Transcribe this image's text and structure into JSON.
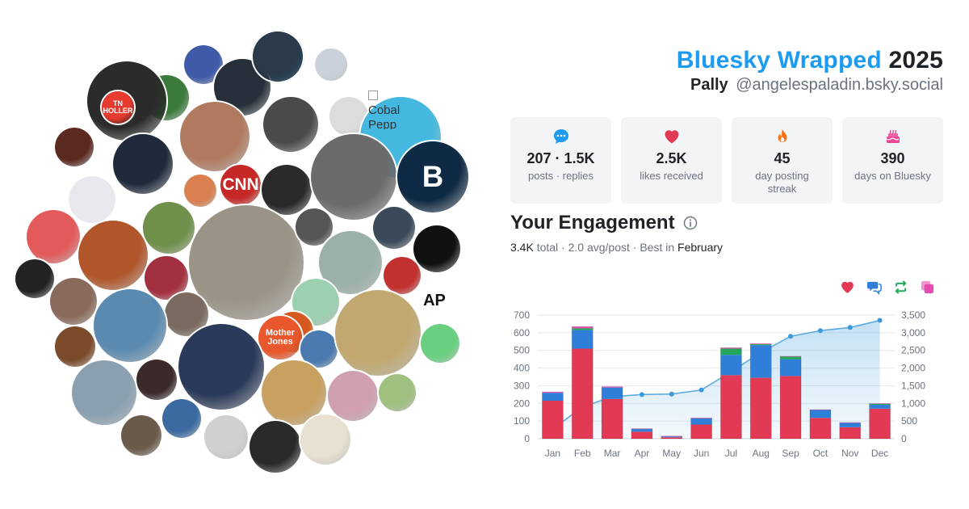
{
  "header": {
    "brand": "Bluesky Wrapped",
    "year": "2025",
    "display_name": "Pally",
    "handle": "@angelespaladin.bsky.social"
  },
  "stats": [
    {
      "icon": "chat-bubble-icon",
      "value": "207 · 1.5K",
      "label": "posts · replies",
      "color": "#1d9bf0"
    },
    {
      "icon": "heart-icon",
      "value": "2.5K",
      "label": "likes received",
      "color": "#e23a55"
    },
    {
      "icon": "flame-icon",
      "value": "45",
      "label": "day posting streak",
      "color": "#f97316"
    },
    {
      "icon": "cake-icon",
      "value": "390",
      "label": "days on Bluesky",
      "color": "#ec4899"
    }
  ],
  "engagement": {
    "title": "Your Engagement",
    "total": "3.4K",
    "total_suffix": "total · 2.0 avg/post · Best in",
    "best_month": "February"
  },
  "legend": [
    {
      "icon": "heart-icon",
      "color": "#e23a55"
    },
    {
      "icon": "reply-icon",
      "color": "#2f7fd8"
    },
    {
      "icon": "repost-icon",
      "color": "#22a65a"
    },
    {
      "icon": "quote-icon",
      "color": "#e64bb0"
    }
  ],
  "avatar_cloud": {
    "broken_alt": "Cobal Pepp",
    "avatars": [
      {
        "d": 66,
        "c": "#1f5f8b",
        "t": ""
      },
      {
        "d": 48,
        "c": "#3f5ba8",
        "t": ""
      },
      {
        "d": 70,
        "c": "#27303a",
        "t": ""
      },
      {
        "d": 40,
        "c": "#c9d2da",
        "t": ""
      },
      {
        "d": 56,
        "c": "#3a7a3a",
        "t": ""
      },
      {
        "d": 68,
        "c": "#4a4a4a",
        "t": ""
      },
      {
        "d": 86,
        "c": "#b07a60",
        "t": ""
      },
      {
        "d": 98,
        "c": "#2b2b2b",
        "t": ""
      },
      {
        "d": 48,
        "c": "#5a2a20",
        "t": ""
      },
      {
        "d": 48,
        "c": "#dcdcdc",
        "t": ""
      },
      {
        "d": 74,
        "c": "#1f2a3a",
        "t": ""
      },
      {
        "d": 100,
        "c": "#45b8e0",
        "t": ""
      },
      {
        "d": 40,
        "c": "#e63b2e",
        "t": "TN HOLLER"
      },
      {
        "d": 50,
        "c": "#c62828",
        "t": "CNN"
      },
      {
        "d": 40,
        "c": "#d88050",
        "t": ""
      },
      {
        "d": 62,
        "c": "#2a2a2a",
        "t": ""
      },
      {
        "d": 106,
        "c": "#6b6b6b",
        "t": ""
      },
      {
        "d": 88,
        "c": "#0f2a44",
        "t": "B"
      },
      {
        "d": 58,
        "c": "#e8e8ee",
        "t": ""
      },
      {
        "d": 66,
        "c": "#e25a5a",
        "t": ""
      },
      {
        "d": 64,
        "c": "#6f8f4a",
        "t": ""
      },
      {
        "d": 142,
        "c": "#9a9486",
        "t": ""
      },
      {
        "d": 46,
        "c": "#555555",
        "t": ""
      },
      {
        "d": 52,
        "c": "#3a4a5a",
        "t": ""
      },
      {
        "d": 58,
        "c": "#111111",
        "t": ""
      },
      {
        "d": 48,
        "c": "#222222",
        "t": ""
      },
      {
        "d": 86,
        "c": "#b0562a",
        "t": ""
      },
      {
        "d": 54,
        "c": "#a33040",
        "t": ""
      },
      {
        "d": 58,
        "c": "#8a6a5a",
        "t": ""
      },
      {
        "d": 78,
        "c": "#9ab0a8",
        "t": ""
      },
      {
        "d": 46,
        "c": "#c23030",
        "t": ""
      },
      {
        "d": 58,
        "c": "#9bd0b0",
        "t": ""
      },
      {
        "d": 48,
        "c": "#ffffff",
        "t": "AP"
      },
      {
        "d": 54,
        "c": "#7a6a60",
        "t": ""
      },
      {
        "d": 50,
        "c": "#d65a20",
        "t": ""
      },
      {
        "d": 90,
        "c": "#5a8ab0",
        "t": ""
      },
      {
        "d": 50,
        "c": "#7a4a2a",
        "t": ""
      },
      {
        "d": 54,
        "c": "#e9582c",
        "t": "Mother Jones"
      },
      {
        "d": 46,
        "c": "#4a7ab0",
        "t": ""
      },
      {
        "d": 106,
        "c": "#c0a870",
        "t": ""
      },
      {
        "d": 48,
        "c": "#6ad080",
        "t": ""
      },
      {
        "d": 50,
        "c": "#3a2a2a",
        "t": ""
      },
      {
        "d": 80,
        "c": "#8aa0b0",
        "t": ""
      },
      {
        "d": 48,
        "c": "#3a6aa0",
        "t": ""
      },
      {
        "d": 106,
        "c": "#2a3a5a",
        "t": ""
      },
      {
        "d": 80,
        "c": "#c8a060",
        "t": ""
      },
      {
        "d": 62,
        "c": "#d0a0b0",
        "t": ""
      },
      {
        "d": 46,
        "c": "#a0c080",
        "t": ""
      },
      {
        "d": 50,
        "c": "#6a5a4a",
        "t": ""
      },
      {
        "d": 54,
        "c": "#d0d0d0",
        "t": ""
      },
      {
        "d": 64,
        "c": "#2a2a2a",
        "t": ""
      },
      {
        "d": 62,
        "c": "#e8e0d0",
        "t": ""
      },
      {
        "d": 62,
        "c": "#2a3a4a",
        "t": ""
      }
    ]
  },
  "chart_data": {
    "type": "bar",
    "stacked": true,
    "categories": [
      "Jan",
      "Feb",
      "Mar",
      "Apr",
      "May",
      "Jun",
      "Jul",
      "Aug",
      "Sep",
      "Oct",
      "Nov",
      "Dec"
    ],
    "series": [
      {
        "values": [
          215,
          510,
          225,
          40,
          8,
          80,
          360,
          345,
          355,
          118,
          65,
          170
        ],
        "color": "#e23a55"
      },
      {
        "values": [
          45,
          105,
          65,
          15,
          5,
          35,
          115,
          185,
          95,
          45,
          25,
          22
        ],
        "color": "#2f7fd8"
      },
      {
        "values": [
          0,
          10,
          0,
          0,
          0,
          0,
          35,
          5,
          15,
          0,
          0,
          5
        ],
        "color": "#22a65a"
      },
      {
        "values": [
          5,
          10,
          5,
          2,
          2,
          3,
          5,
          3,
          2,
          2,
          2,
          2
        ],
        "color": "#e64bb0"
      }
    ],
    "cumulative": {
      "values": [
        270,
        900,
        1190,
        1250,
        1265,
        1380,
        1900,
        2440,
        2900,
        3060,
        3150,
        3350
      ],
      "color": "#3a9ad9"
    },
    "ylim_left": [
      0,
      700
    ],
    "ylim_right": [
      0,
      3500
    ],
    "yticks_left": [
      "0",
      "100",
      "200",
      "300",
      "400",
      "500",
      "600",
      "700"
    ],
    "yticks_right": [
      "0",
      "500",
      "1,000",
      "1,500",
      "2,000",
      "2,500",
      "3,000",
      "3,500"
    ],
    "grid": true
  }
}
